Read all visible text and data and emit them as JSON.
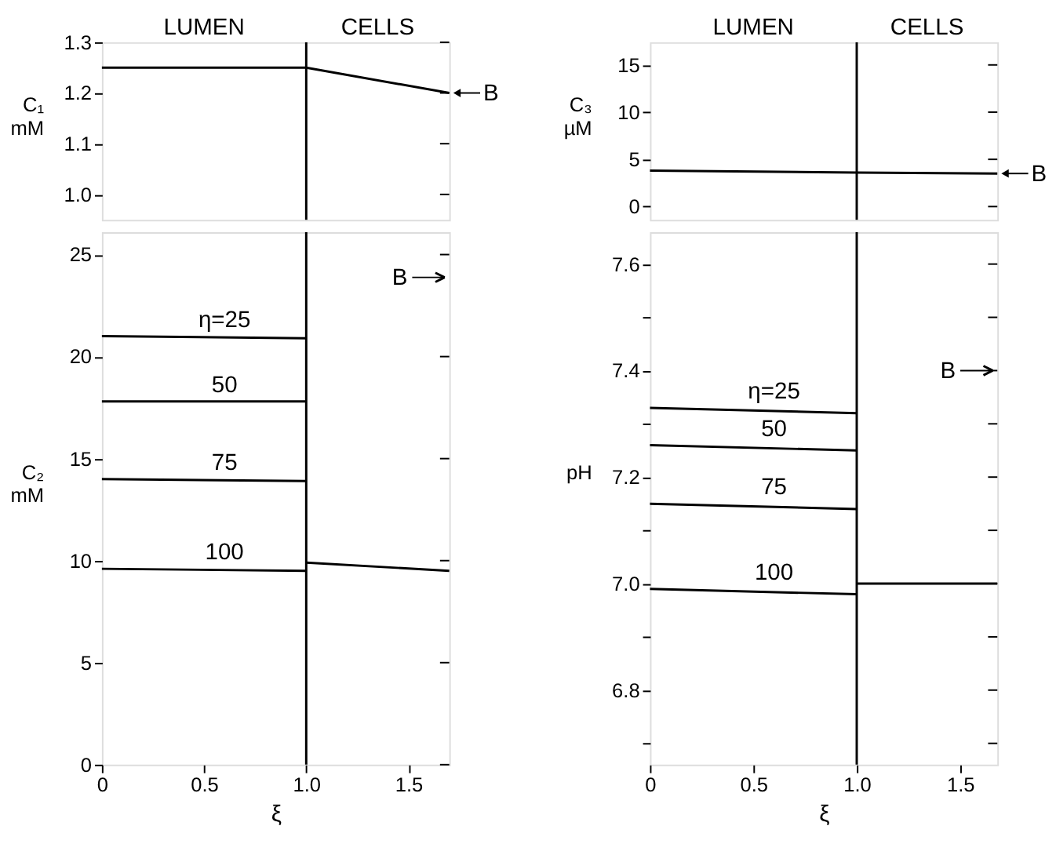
{
  "chart_data": [
    {
      "type": "line",
      "ylabel": "C₁ mM",
      "xlim": [
        0,
        1.7
      ],
      "ylim": [
        0.95,
        1.3
      ],
      "yticks": [
        {
          "value": 1,
          "label": "1.0"
        },
        1.1,
        1.2,
        1.3
      ],
      "tick_labels": "y",
      "series": [
        {
          "x": [
            0,
            1,
            1.7
          ],
          "values": [
            1.25,
            1.25,
            1.2
          ],
          "color": "#000000"
        }
      ],
      "ref_lines": [
        {
          "axis": "x",
          "value": 1
        }
      ],
      "annotations": [
        "LUMEN",
        "CELLS",
        {
          "text": "B",
          "x": 1.7,
          "y": 1.2
        }
      ]
    },
    {
      "type": "line",
      "ylabel": "C₂ mM",
      "xlabel": "ξ",
      "xlim": [
        0,
        1.7
      ],
      "xticks": [
        0,
        0.5,
        {
          "value": 1,
          "label": "1.0"
        },
        1.5
      ],
      "ylim": [
        0,
        26.1
      ],
      "yticks": [
        0,
        5,
        10,
        15,
        20,
        25
      ],
      "series": [
        {
          "name": "η=25",
          "x": [
            0,
            1
          ],
          "values": [
            21.0,
            20.9
          ],
          "color": "#000000"
        },
        {
          "name": "50",
          "x": [
            0,
            1
          ],
          "values": [
            17.8,
            17.8
          ],
          "color": "#000000"
        },
        {
          "name": "75",
          "x": [
            0,
            1
          ],
          "values": [
            14.0,
            13.9
          ],
          "color": "#000000"
        },
        {
          "name": "100",
          "x": [
            0,
            1
          ],
          "values": [
            9.6,
            9.5
          ],
          "color": "#000000"
        },
        {
          "x": [
            1,
            1.7
          ],
          "values": [
            9.9,
            9.5
          ],
          "color": "#000000"
        }
      ],
      "ref_lines": [
        {
          "axis": "x",
          "value": 1
        }
      ],
      "annotations": [
        "B"
      ]
    },
    {
      "type": "line",
      "ylabel": "C₃ µM",
      "xlim": [
        0,
        1.68
      ],
      "ylim": [
        -1.4,
        17.4
      ],
      "yticks": [
        0,
        5,
        10,
        15
      ],
      "tick_labels": "y",
      "series": [
        {
          "x": [
            0,
            1,
            1.68
          ],
          "values": [
            3.8,
            3.6,
            3.5
          ],
          "color": "#000000"
        }
      ],
      "ref_lines": [
        {
          "axis": "x",
          "value": 1
        }
      ],
      "annotations": [
        "LUMEN",
        "CELLS",
        {
          "text": "B",
          "x": 1.68,
          "y": 3.5
        }
      ]
    },
    {
      "type": "line",
      "ylabel": "pH",
      "xlabel": "ξ",
      "xlim": [
        0,
        1.68
      ],
      "xticks": [
        0,
        0.5,
        {
          "value": 1,
          "label": "1.0"
        },
        1.5
      ],
      "ylim": [
        6.66,
        7.66
      ],
      "yticks": [
        {
          "value": 6.7,
          "label": null
        },
        6.8,
        {
          "value": 6.9,
          "label": null
        },
        {
          "value": 7,
          "label": "7.0"
        },
        {
          "value": 7.1,
          "label": null
        },
        7.2,
        {
          "value": 7.3,
          "label": null
        },
        7.4,
        {
          "value": 7.5,
          "label": null
        },
        7.6
      ],
      "series": [
        {
          "name": "η=25",
          "x": [
            0,
            1
          ],
          "values": [
            7.33,
            7.32
          ],
          "color": "#000000"
        },
        {
          "name": "50",
          "x": [
            0,
            1
          ],
          "values": [
            7.26,
            7.25
          ],
          "color": "#000000"
        },
        {
          "name": "75",
          "x": [
            0,
            1
          ],
          "values": [
            7.15,
            7.14
          ],
          "color": "#000000"
        },
        {
          "name": "100",
          "x": [
            0,
            1
          ],
          "values": [
            6.99,
            6.98
          ],
          "color": "#000000"
        },
        {
          "x": [
            1,
            1.68
          ],
          "values": [
            7.0,
            7.0
          ],
          "color": "#000000"
        }
      ],
      "ref_lines": [
        {
          "axis": "x",
          "value": 1
        }
      ],
      "annotations": [
        "B"
      ]
    }
  ]
}
